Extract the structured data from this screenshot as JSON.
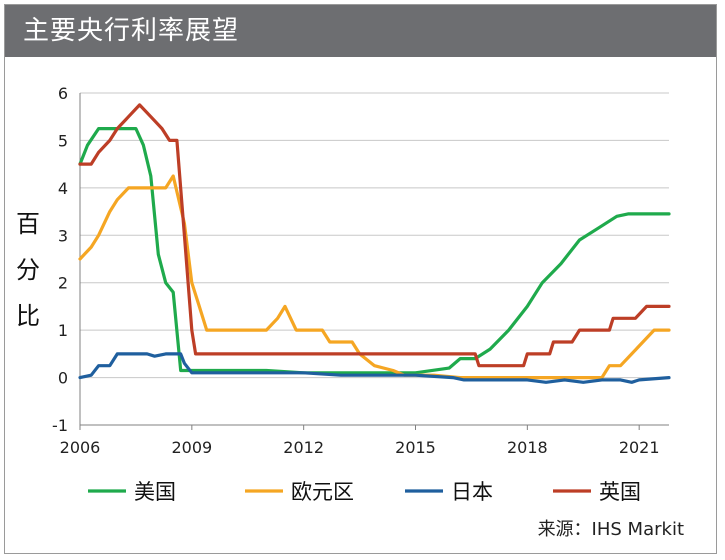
{
  "header": {
    "title": "主要央行利率展望"
  },
  "source": "来源：IHS Markit",
  "chart_data": {
    "type": "line",
    "title": "主要央行利率展望",
    "ylabel": "百分比",
    "xlabel": "",
    "xlim": [
      2006,
      2021.8
    ],
    "ylim": [
      -1,
      6
    ],
    "xticks": [
      2006,
      2009,
      2012,
      2015,
      2018,
      2021
    ],
    "yticks": [
      -1,
      0,
      1,
      2,
      3,
      4,
      5,
      6
    ],
    "grid": true,
    "legend_position": "bottom",
    "series": [
      {
        "name": "美国",
        "color": "#1faa4c",
        "points": [
          [
            2006.0,
            4.5
          ],
          [
            2006.2,
            4.9
          ],
          [
            2006.5,
            5.25
          ],
          [
            2006.8,
            5.25
          ],
          [
            2007.2,
            5.25
          ],
          [
            2007.5,
            5.25
          ],
          [
            2007.7,
            4.9
          ],
          [
            2007.9,
            4.25
          ],
          [
            2008.1,
            2.6
          ],
          [
            2008.3,
            2.0
          ],
          [
            2008.5,
            1.8
          ],
          [
            2008.7,
            0.15
          ],
          [
            2009.0,
            0.15
          ],
          [
            2009.5,
            0.15
          ],
          [
            2010.0,
            0.15
          ],
          [
            2011.0,
            0.15
          ],
          [
            2012.0,
            0.1
          ],
          [
            2013.0,
            0.1
          ],
          [
            2014.0,
            0.1
          ],
          [
            2015.0,
            0.1
          ],
          [
            2015.9,
            0.2
          ],
          [
            2016.2,
            0.4
          ],
          [
            2016.6,
            0.4
          ],
          [
            2017.0,
            0.6
          ],
          [
            2017.5,
            1.0
          ],
          [
            2018.0,
            1.5
          ],
          [
            2018.4,
            2.0
          ],
          [
            2018.9,
            2.4
          ],
          [
            2019.4,
            2.9
          ],
          [
            2019.9,
            3.15
          ],
          [
            2020.4,
            3.4
          ],
          [
            2020.7,
            3.45
          ],
          [
            2021.0,
            3.45
          ],
          [
            2021.4,
            3.45
          ],
          [
            2021.8,
            3.45
          ]
        ]
      },
      {
        "name": "欧元区",
        "color": "#f5a623",
        "points": [
          [
            2006.0,
            2.5
          ],
          [
            2006.3,
            2.75
          ],
          [
            2006.5,
            3.0
          ],
          [
            2006.8,
            3.5
          ],
          [
            2007.0,
            3.75
          ],
          [
            2007.3,
            4.0
          ],
          [
            2007.8,
            4.0
          ],
          [
            2008.3,
            4.0
          ],
          [
            2008.5,
            4.25
          ],
          [
            2008.8,
            3.25
          ],
          [
            2009.0,
            2.0
          ],
          [
            2009.2,
            1.5
          ],
          [
            2009.4,
            1.0
          ],
          [
            2010.0,
            1.0
          ],
          [
            2011.0,
            1.0
          ],
          [
            2011.3,
            1.25
          ],
          [
            2011.5,
            1.5
          ],
          [
            2011.8,
            1.0
          ],
          [
            2012.5,
            1.0
          ],
          [
            2012.7,
            0.75
          ],
          [
            2013.3,
            0.75
          ],
          [
            2013.5,
            0.5
          ],
          [
            2013.9,
            0.25
          ],
          [
            2014.4,
            0.15
          ],
          [
            2014.7,
            0.05
          ],
          [
            2015.5,
            0.05
          ],
          [
            2016.2,
            0.0
          ],
          [
            2017.0,
            0.0
          ],
          [
            2018.0,
            0.0
          ],
          [
            2019.0,
            0.0
          ],
          [
            2020.0,
            0.0
          ],
          [
            2020.2,
            0.25
          ],
          [
            2020.5,
            0.25
          ],
          [
            2020.8,
            0.5
          ],
          [
            2021.1,
            0.75
          ],
          [
            2021.4,
            1.0
          ],
          [
            2021.8,
            1.0
          ]
        ]
      },
      {
        "name": "日本",
        "color": "#1f5f9e",
        "points": [
          [
            2006.0,
            0.0
          ],
          [
            2006.3,
            0.05
          ],
          [
            2006.5,
            0.25
          ],
          [
            2006.8,
            0.25
          ],
          [
            2007.0,
            0.5
          ],
          [
            2007.5,
            0.5
          ],
          [
            2007.8,
            0.5
          ],
          [
            2008.0,
            0.45
          ],
          [
            2008.3,
            0.5
          ],
          [
            2008.7,
            0.5
          ],
          [
            2008.8,
            0.3
          ],
          [
            2009.0,
            0.1
          ],
          [
            2010.0,
            0.1
          ],
          [
            2011.0,
            0.1
          ],
          [
            2012.0,
            0.1
          ],
          [
            2013.0,
            0.05
          ],
          [
            2014.0,
            0.05
          ],
          [
            2015.0,
            0.05
          ],
          [
            2016.0,
            0.0
          ],
          [
            2016.3,
            -0.05
          ],
          [
            2017.0,
            -0.05
          ],
          [
            2018.0,
            -0.05
          ],
          [
            2018.5,
            -0.1
          ],
          [
            2019.0,
            -0.05
          ],
          [
            2019.5,
            -0.1
          ],
          [
            2020.0,
            -0.05
          ],
          [
            2020.5,
            -0.05
          ],
          [
            2020.8,
            -0.1
          ],
          [
            2021.0,
            -0.05
          ],
          [
            2021.8,
            0.0
          ]
        ]
      },
      {
        "name": "英国",
        "color": "#bd3e26",
        "points": [
          [
            2006.0,
            4.5
          ],
          [
            2006.3,
            4.5
          ],
          [
            2006.5,
            4.75
          ],
          [
            2006.8,
            5.0
          ],
          [
            2007.0,
            5.25
          ],
          [
            2007.3,
            5.5
          ],
          [
            2007.6,
            5.75
          ],
          [
            2007.9,
            5.5
          ],
          [
            2008.2,
            5.25
          ],
          [
            2008.4,
            5.0
          ],
          [
            2008.6,
            5.0
          ],
          [
            2008.8,
            3.0
          ],
          [
            2009.0,
            1.0
          ],
          [
            2009.1,
            0.5
          ],
          [
            2010.0,
            0.5
          ],
          [
            2011.0,
            0.5
          ],
          [
            2012.0,
            0.5
          ],
          [
            2013.0,
            0.5
          ],
          [
            2014.0,
            0.5
          ],
          [
            2015.0,
            0.5
          ],
          [
            2016.0,
            0.5
          ],
          [
            2016.6,
            0.5
          ],
          [
            2016.7,
            0.25
          ],
          [
            2017.5,
            0.25
          ],
          [
            2017.9,
            0.25
          ],
          [
            2018.0,
            0.5
          ],
          [
            2018.6,
            0.5
          ],
          [
            2018.7,
            0.75
          ],
          [
            2019.2,
            0.75
          ],
          [
            2019.4,
            1.0
          ],
          [
            2020.2,
            1.0
          ],
          [
            2020.3,
            1.25
          ],
          [
            2020.9,
            1.25
          ],
          [
            2021.2,
            1.5
          ],
          [
            2021.8,
            1.5
          ]
        ]
      }
    ]
  }
}
